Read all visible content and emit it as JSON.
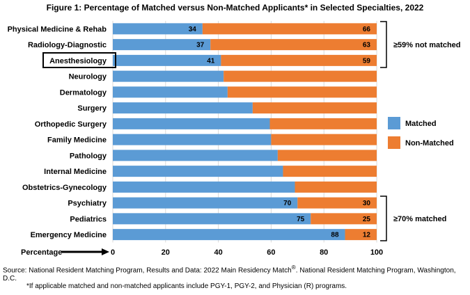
{
  "chart_data": {
    "type": "bar",
    "orientation": "horizontal",
    "stacked": true,
    "title": "Figure 1: Percentage of Matched versus Non-Matched Applicants* in Selected Specialties, 2022",
    "xlabel": "Percentage",
    "xlim": [
      0,
      100
    ],
    "xticks": [
      "0",
      "20",
      "40",
      "60",
      "80",
      "100"
    ],
    "categories": [
      "Physical Medicine & Rehab",
      "Radiology-Diagnostic",
      "Anesthesiology",
      "Neurology",
      "Dermatology",
      "Surgery",
      "Orthopedic Surgery",
      "Family Medicine",
      "Pathology",
      "Internal Medicine",
      "Obstetrics-Gynecology",
      "Psychiatry",
      "Pediatrics",
      "Emergency Medicine"
    ],
    "series": [
      {
        "name": "Matched",
        "color": "#5b9bd5",
        "values": [
          34,
          37,
          41,
          42,
          43.5,
          53,
          59.5,
          60,
          62.5,
          64.5,
          69,
          70,
          75,
          88
        ],
        "labels": [
          "34",
          "37",
          "41",
          "",
          "",
          "",
          "",
          "",
          "",
          "",
          "",
          "70",
          "75",
          "88"
        ]
      },
      {
        "name": "Non-Matched",
        "color": "#ed7d31",
        "values": [
          66,
          63,
          59,
          58,
          56.5,
          47,
          40.5,
          40,
          37.5,
          35.5,
          31,
          30,
          25,
          12
        ],
        "labels": [
          "66",
          "63",
          "59",
          "",
          "",
          "",
          "",
          "",
          "",
          "",
          "",
          "30",
          "25",
          "12"
        ]
      }
    ],
    "highlighted_category": "Anesthesiology",
    "annotations": {
      "top_group": "≥59% not matched",
      "bottom_group": "≥70% matched"
    }
  },
  "source": {
    "prefix": "Source: National Resident Matching Program, Results and Data: 2022 Main Residency Match",
    "sup": "®",
    "suffix": ". National Resident Matching Program, Washington, D.C."
  },
  "footnote": "*If applicable matched and non-matched applicants include PGY-1, PGY-2, and Physician (R) programs."
}
